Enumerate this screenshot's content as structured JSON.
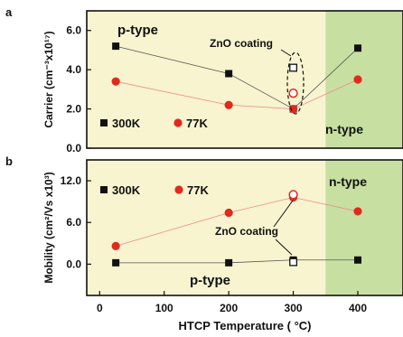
{
  "chart_data": [
    {
      "panel_label": "a",
      "type": "scatter",
      "xlabel": "",
      "ylabel": "Carrier (cm⁻³x10¹⁷)",
      "xlim": [
        -20,
        470
      ],
      "ylim": [
        0,
        7
      ],
      "xticks": [],
      "yticks": [
        "0.0",
        "2.0",
        "4.0",
        "6.0"
      ],
      "regions": [
        {
          "label": "p-type",
          "from": -20,
          "to": 350,
          "color": "#f7f4cf"
        },
        {
          "label": "n-type",
          "from": 350,
          "to": 470,
          "color": "#c7dfa1"
        }
      ],
      "series": [
        {
          "name": "300K",
          "marker": "square",
          "color": "#111111",
          "points": [
            [
              25,
              5.2
            ],
            [
              200,
              3.8
            ],
            [
              300,
              2.0
            ],
            [
              400,
              5.1
            ]
          ]
        },
        {
          "name": "77K",
          "marker": "circle",
          "color": "#e02a1e",
          "points": [
            [
              25,
              3.4
            ],
            [
              200,
              2.2
            ],
            [
              300,
              2.0
            ],
            [
              400,
              3.5
            ]
          ]
        }
      ],
      "open_points": [
        {
          "series": "300K",
          "x": 300,
          "y": 4.1
        },
        {
          "series": "77K",
          "x": 300,
          "y": 2.8
        }
      ],
      "annotation": "ZnO coating"
    },
    {
      "panel_label": "b",
      "type": "scatter",
      "xlabel": "HTCP Temperature ( °C)",
      "ylabel": "Mobility (cm²/Vs x10³)",
      "xlim": [
        -20,
        470
      ],
      "ylim": [
        -4.5,
        15
      ],
      "xticks": [
        "0",
        "100",
        "200",
        "300",
        "400"
      ],
      "yticks": [
        "0.0",
        "6.0",
        "12.0"
      ],
      "regions": [
        {
          "label": "p-type",
          "from": -20,
          "to": 350,
          "color": "#f7f4cf"
        },
        {
          "label": "n-type",
          "from": 350,
          "to": 470,
          "color": "#c7dfa1"
        }
      ],
      "series": [
        {
          "name": "300K",
          "marker": "square",
          "color": "#111111",
          "points": [
            [
              25,
              0.2
            ],
            [
              200,
              0.2
            ],
            [
              300,
              0.6
            ],
            [
              400,
              0.6
            ]
          ]
        },
        {
          "name": "77K",
          "marker": "circle",
          "color": "#e02a1e",
          "points": [
            [
              25,
              2.6
            ],
            [
              200,
              7.4
            ],
            [
              300,
              9.6
            ],
            [
              400,
              7.6
            ]
          ]
        }
      ],
      "open_points": [
        {
          "series": "300K",
          "x": 300,
          "y": 0.3
        },
        {
          "series": "77K",
          "x": 300,
          "y": 10.0
        }
      ],
      "annotation": "ZnO coating"
    }
  ]
}
